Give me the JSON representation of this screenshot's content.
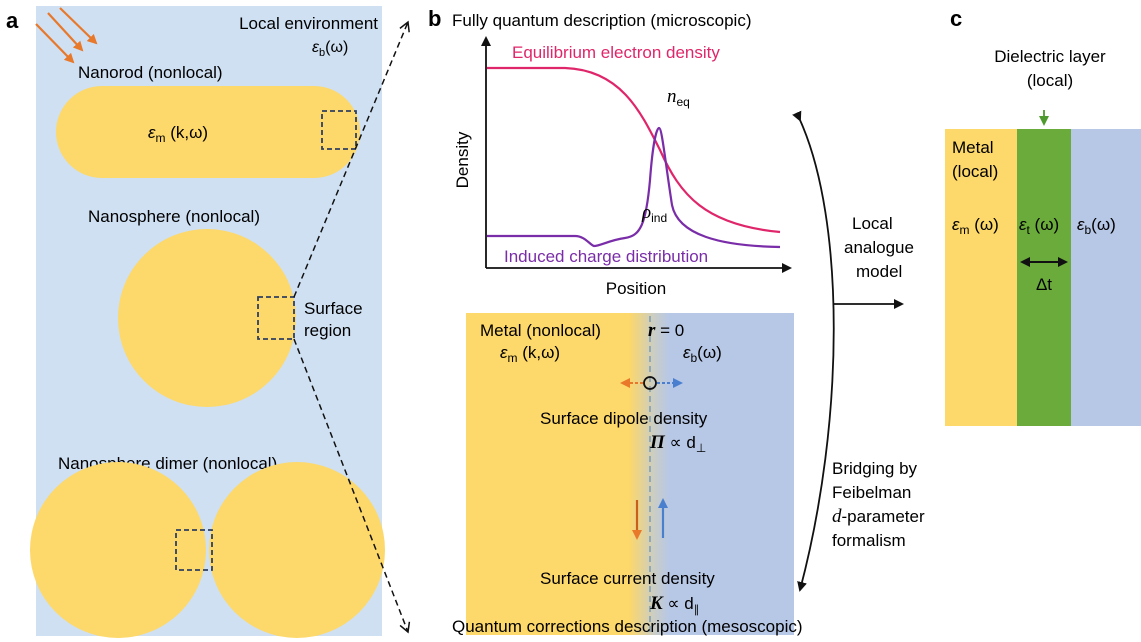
{
  "panel_a": {
    "letter": "a",
    "environment_label": "Local environment",
    "environment_eps": "ε",
    "environment_eps_sub": "b",
    "environment_eps_arg": "(ω)",
    "nanorod_label": "Nanorod (nonlocal)",
    "metal_eps": "ε",
    "metal_eps_sub": "m",
    "metal_eps_arg": " (k,ω)",
    "nanosphere_label": "Nanosphere (nonlocal)",
    "surface_label_1": "Surface",
    "surface_label_2": "region",
    "dimer_label": "Nanosphere dimer (nonlocal)"
  },
  "panel_b": {
    "letter": "b",
    "top_title": "Fully quantum description (microscopic)",
    "eq_density_label": "Equilibrium electron density",
    "n_eq_symbol": "n",
    "n_eq_sub": "eq",
    "rho_symbol": "ρ",
    "rho_sub": "ind",
    "induced_label": "Induced charge distribution",
    "ylabel": "Density",
    "xlabel": "Position",
    "metal_label": "Metal (nonlocal)",
    "metal_eps": "ε",
    "metal_eps_sub": "m",
    "metal_eps_arg": " (k,ω)",
    "r_symbol": "r",
    "r_eq": " = 0",
    "b_eps": "ε",
    "b_eps_sub": "b",
    "b_eps_arg": "(ω)",
    "dipole_label": "Surface dipole density",
    "pi_symbol": "Π",
    "pi_prop": " ∝ d",
    "pi_sub": "⊥",
    "current_label": "Surface current density",
    "k_symbol": "K",
    "k_prop": " ∝ d",
    "k_sub": "∥",
    "bottom_title": "Quantum corrections description (mesoscopic)"
  },
  "middle": {
    "local_1": "Local",
    "local_2": "analogue",
    "local_3": "model",
    "bridge_1": "Bridging by",
    "bridge_2": "Feibelman",
    "bridge_3_sym": "d",
    "bridge_3_rest": "-parameter",
    "bridge_4": "formalism"
  },
  "panel_c": {
    "letter": "c",
    "dielectric_1": "Dielectric layer",
    "dielectric_2": "(local)",
    "metal_1": "Metal",
    "metal_2": "(local)",
    "eps_m": "ε",
    "eps_m_sub": "m",
    "eps_m_arg": " (ω)",
    "eps_t": "ε",
    "eps_t_sub": "t",
    "eps_t_arg": " (ω)",
    "eps_b": "ε",
    "eps_b_sub": "b",
    "eps_b_arg": "(ω)",
    "delta_t": "Δt"
  },
  "colors": {
    "gold": "#fdd86a",
    "env_blue": "#cfe0f3",
    "layer_blue": "#b7c7e6",
    "layer_green": "#6aab3b",
    "crimson": "#e0266a",
    "purple": "#7a2da8",
    "orange": "#e8782a",
    "blue_arrow": "#4a7fd0",
    "dash_box": "#2f3f5f"
  }
}
